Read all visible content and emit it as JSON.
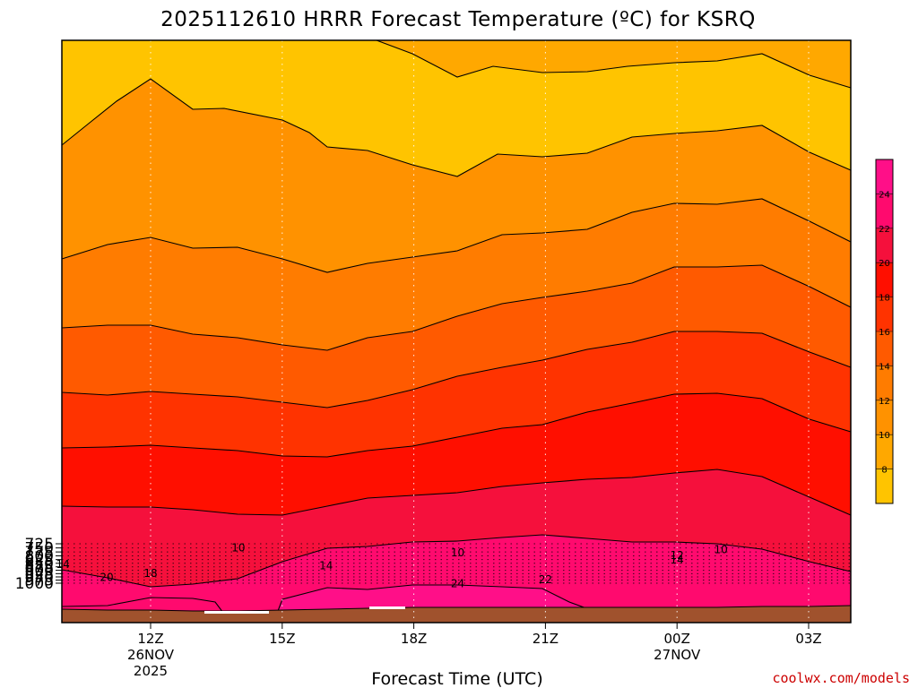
{
  "chart_data": {
    "type": "contour",
    "title": "2025112610 HRRR Forecast Temperature (ºC) for KSRQ",
    "xlabel": "Forecast Time (UTC)",
    "ylabel": "",
    "y_axis": {
      "unit": "hPa",
      "ticks": [
        725,
        750,
        775,
        800,
        825,
        850,
        875,
        900,
        925,
        950,
        975,
        1000
      ]
    },
    "x_axis": {
      "ticks": [
        {
          "label": "12Z",
          "sub": [
            "26NOV",
            "2025"
          ]
        },
        {
          "label": "15Z",
          "sub": []
        },
        {
          "label": "18Z",
          "sub": []
        },
        {
          "label": "21Z",
          "sub": []
        },
        {
          "label": "00Z",
          "sub": [
            "27NOV"
          ]
        },
        {
          "label": "03Z",
          "sub": []
        }
      ]
    },
    "colorbar": {
      "labels": [
        "8",
        "10",
        "12",
        "14",
        "16",
        "18",
        "20",
        "22",
        "24"
      ],
      "colors": [
        "#ffc400",
        "#ffa800",
        "#ff9200",
        "#ff7c00",
        "#ff5a00",
        "#ff3300",
        "#ff0f00",
        "#f5103c",
        "#ff0a6e",
        "#ff0f88"
      ]
    },
    "contour_labels": [
      {
        "value": "10",
        "hour": 14.0,
        "p": 750
      },
      {
        "value": "10",
        "hour": 19.0,
        "p": 781
      },
      {
        "value": "10",
        "hour": 25.0,
        "p": 761
      },
      {
        "value": "12",
        "hour": 24.0,
        "p": 796
      },
      {
        "value": "14",
        "hour": 10.0,
        "p": 858
      },
      {
        "value": "14",
        "hour": 16.0,
        "p": 866
      },
      {
        "value": "14",
        "hour": 24.0,
        "p": 826
      },
      {
        "value": "18",
        "hour": 12.0,
        "p": 922
      },
      {
        "value": "20",
        "hour": 11.0,
        "p": 954
      },
      {
        "value": "22",
        "hour": 21.0,
        "p": 972
      },
      {
        "value": "24",
        "hour": 19.0,
        "p": 1002
      }
    ],
    "ground_color": "#a0522d",
    "contour_levels": [
      8,
      10,
      12,
      14,
      16,
      18,
      20,
      22,
      24
    ]
  },
  "credit": "coolwx.com/models"
}
